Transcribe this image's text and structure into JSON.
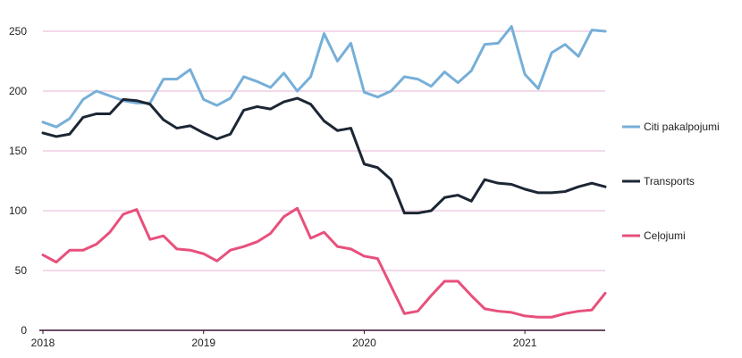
{
  "chart_data": {
    "type": "line",
    "title": "",
    "xlabel": "",
    "ylabel": "",
    "ylim": [
      0,
      260
    ],
    "yticks": [
      "0",
      "50",
      "100",
      "150",
      "200",
      "250"
    ],
    "xticks": [
      "2018",
      "2019",
      "2020",
      "2021"
    ],
    "x": [
      "2018-01",
      "2018-02",
      "2018-03",
      "2018-04",
      "2018-05",
      "2018-06",
      "2018-07",
      "2018-08",
      "2018-09",
      "2018-10",
      "2018-11",
      "2018-12",
      "2019-01",
      "2019-02",
      "2019-03",
      "2019-04",
      "2019-05",
      "2019-06",
      "2019-07",
      "2019-08",
      "2019-09",
      "2019-10",
      "2019-11",
      "2019-12",
      "2020-01",
      "2020-02",
      "2020-03",
      "2020-04",
      "2020-05",
      "2020-06",
      "2020-07",
      "2020-08",
      "2020-09",
      "2020-10",
      "2020-11",
      "2020-12",
      "2021-01",
      "2021-02",
      "2021-03",
      "2021-04",
      "2021-05",
      "2021-06",
      "2021-07"
    ],
    "grid": "horizontal",
    "legend_position": "right",
    "series": [
      {
        "name": "Citi pakalpojumi",
        "color": "#76afd8",
        "values": [
          174,
          170,
          177,
          193,
          200,
          196,
          192,
          190,
          190,
          210,
          210,
          218,
          193,
          188,
          194,
          212,
          208,
          203,
          215,
          200,
          212,
          248,
          225,
          240,
          199,
          195,
          200,
          212,
          210,
          204,
          216,
          207,
          217,
          239,
          240,
          254,
          214,
          202,
          232,
          239,
          229,
          251,
          250
        ]
      },
      {
        "name": "Transports",
        "color": "#1c2634",
        "values": [
          165,
          162,
          164,
          178,
          181,
          181,
          193,
          192,
          189,
          176,
          169,
          171,
          165,
          160,
          164,
          184,
          187,
          185,
          191,
          194,
          189,
          175,
          167,
          169,
          139,
          136,
          126,
          98,
          98,
          100,
          111,
          113,
          108,
          126,
          123,
          122,
          118,
          115,
          115,
          116,
          120,
          123,
          120
        ]
      },
      {
        "name": "Ceļojumi",
        "color": "#e8507c",
        "values": [
          63,
          57,
          67,
          67,
          72,
          82,
          97,
          101,
          76,
          79,
          68,
          67,
          64,
          58,
          67,
          70,
          74,
          81,
          95,
          102,
          77,
          82,
          70,
          68,
          62,
          60,
          37,
          14,
          16,
          29,
          41,
          41,
          29,
          18,
          16,
          15,
          12,
          11,
          11,
          14,
          16,
          17,
          31
        ]
      }
    ]
  }
}
